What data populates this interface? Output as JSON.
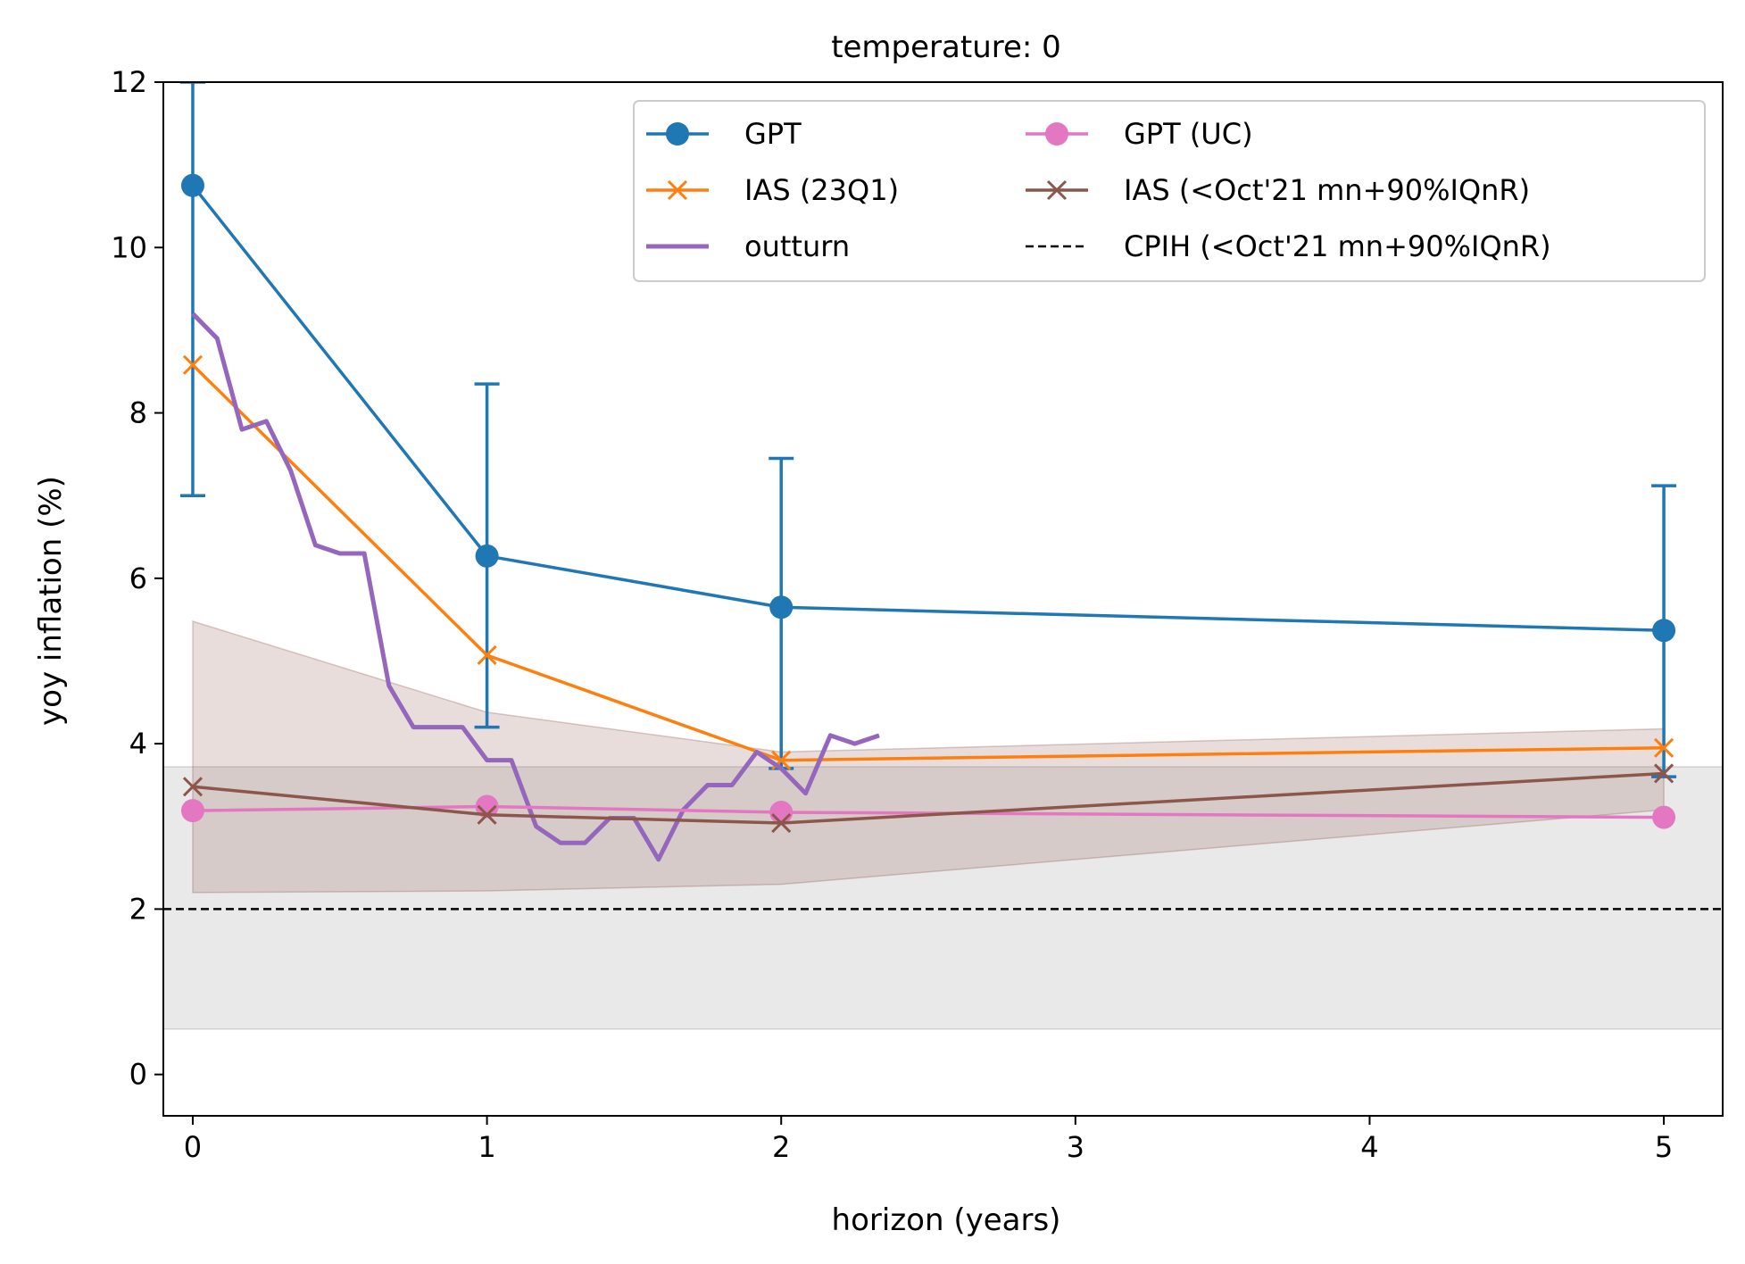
{
  "chart_data": {
    "type": "line",
    "title": "temperature: 0",
    "xlabel": "horizon (years)",
    "ylabel": "yoy inflation (%)",
    "xlim": [
      -0.1,
      5.2
    ],
    "ylim": [
      -0.5,
      12
    ],
    "xticks": [
      0,
      1,
      2,
      3,
      4,
      5
    ],
    "yticks": [
      0,
      2,
      4,
      6,
      8,
      10,
      12
    ],
    "colors": {
      "gpt": "#1f77b4",
      "ias": "#ff7f0e",
      "outturn": "#9467bd",
      "gpt_uc": "#e377c2",
      "ias_hist": "#8c564b",
      "cpih": "#000000",
      "ias_band": "#8c564b",
      "cpih_band": "#b0b0b0"
    },
    "series": [
      {
        "name": "GPT",
        "marker": "circle",
        "x": [
          0,
          1,
          2,
          5
        ],
        "values": [
          10.75,
          6.27,
          5.65,
          5.37
        ],
        "error_low": [
          7.0,
          4.2,
          3.7,
          3.6
        ],
        "error_high": [
          12.0,
          8.35,
          7.45,
          7.12
        ]
      },
      {
        "name": "IAS (23Q1)",
        "marker": "x",
        "x": [
          0,
          1,
          2,
          5
        ],
        "values": [
          8.58,
          5.07,
          3.8,
          3.95
        ]
      },
      {
        "name": "outturn",
        "marker": "none",
        "x": [
          0,
          0.083,
          0.167,
          0.25,
          0.333,
          0.417,
          0.5,
          0.583,
          0.667,
          0.75,
          0.833,
          0.917,
          1.0,
          1.083,
          1.167,
          1.25,
          1.333,
          1.417,
          1.5,
          1.583,
          1.667,
          1.75,
          1.833,
          1.917,
          2.0,
          2.083,
          2.167,
          2.25,
          2.333
        ],
        "values": [
          9.2,
          8.9,
          7.8,
          7.9,
          7.3,
          6.4,
          6.3,
          6.3,
          4.7,
          4.2,
          4.2,
          4.2,
          3.8,
          3.8,
          3.0,
          2.8,
          2.8,
          3.1,
          3.1,
          2.6,
          3.2,
          3.5,
          3.5,
          3.9,
          3.7,
          3.4,
          4.1,
          4.0,
          4.1
        ]
      },
      {
        "name": "GPT (UC)",
        "marker": "circle",
        "x": [
          0,
          1,
          2,
          5
        ],
        "values": [
          3.19,
          3.24,
          3.17,
          3.11
        ]
      },
      {
        "name": "IAS (<Oct'21 mn+90%IQnR)",
        "marker": "x",
        "x": [
          0,
          1,
          2,
          5
        ],
        "values": [
          3.48,
          3.14,
          3.04,
          3.64
        ],
        "band_low": [
          2.2,
          2.22,
          2.3,
          3.2
        ],
        "band_high": [
          5.48,
          4.38,
          3.9,
          4.18
        ]
      },
      {
        "name": "CPIH (<Oct'21 mn+90%IQnR)",
        "marker": "dashed",
        "value": 2.0,
        "band_low": 0.55,
        "band_high": 3.72
      }
    ],
    "legend": {
      "location": "upper right",
      "columns": 2,
      "entries": [
        "GPT",
        "IAS (23Q1)",
        "outturn",
        "GPT (UC)",
        "IAS (<Oct'21 mn+90%IQnR)",
        "CPIH (<Oct'21 mn+90%IQnR)"
      ]
    }
  }
}
